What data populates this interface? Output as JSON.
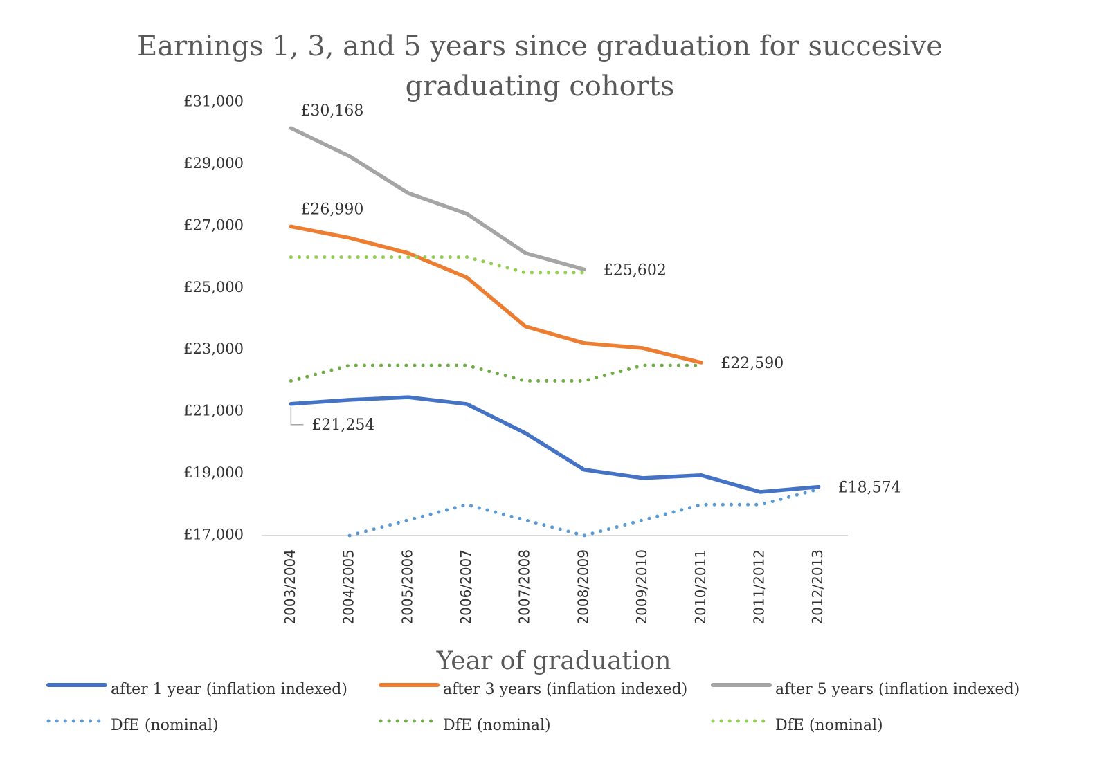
{
  "chart_data": {
    "type": "line",
    "title": "Earnings 1, 3, and 5 years since graduation for succesive graduating cohorts",
    "x_label": "Year of graduation",
    "categories": [
      "2003/2004",
      "2004/2005",
      "2005/2006",
      "2006/2007",
      "2007/2008",
      "2008/2009",
      "2009/2010",
      "2010/2011",
      "2011/2012",
      "2012/2013"
    ],
    "ylim": [
      17000,
      31000
    ],
    "yticks": [
      {
        "value": 17000,
        "label": "£17,000"
      },
      {
        "value": 19000,
        "label": "£19,000"
      },
      {
        "value": 21000,
        "label": "£21,000"
      },
      {
        "value": 23000,
        "label": "£23,000"
      },
      {
        "value": 25000,
        "label": "£25,000"
      },
      {
        "value": 27000,
        "label": "£27,000"
      },
      {
        "value": 29000,
        "label": "£29,000"
      },
      {
        "value": 31000,
        "label": "£31,000"
      }
    ],
    "grid": false,
    "legend": "bottom",
    "series": [
      {
        "name": "after 1 year  (inflation indexed)",
        "color": "#4472c4",
        "line_style": "solid",
        "values": [
          21254,
          21385,
          21470,
          21250,
          20310,
          19130,
          18860,
          18950,
          18410,
          18574
        ],
        "value_labels": [
          "£21,254",
          null,
          null,
          null,
          null,
          null,
          null,
          null,
          null,
          "£18,574"
        ]
      },
      {
        "name": "after 3 years  (inflation indexed)",
        "color": "#ed7d31",
        "line_style": "solid",
        "values": [
          26990,
          26620,
          26130,
          25340,
          23760,
          23220,
          23060,
          22590,
          null,
          null
        ],
        "value_labels": [
          "£26,990",
          null,
          null,
          null,
          null,
          null,
          null,
          "£22,590",
          null,
          null
        ]
      },
      {
        "name": "after 5 years  (inflation indexed)",
        "color": "#a5a5a5",
        "line_style": "solid",
        "values": [
          30168,
          29260,
          28070,
          27400,
          26130,
          25602,
          null,
          null,
          null,
          null
        ],
        "value_labels": [
          "£30,168",
          null,
          null,
          null,
          null,
          "£25,602",
          null,
          null,
          null,
          null
        ]
      },
      {
        "name": "DfE (nominal)",
        "color": "#5b9bd5",
        "line_style": "dotted",
        "values": [
          null,
          17000,
          17500,
          18000,
          17500,
          17000,
          17500,
          18000,
          18000,
          18500
        ]
      },
      {
        "name": "DfE (nominal)",
        "color": "#70ad47",
        "line_style": "dotted",
        "values": [
          22000,
          22500,
          22500,
          22500,
          22000,
          22000,
          22500,
          22500,
          null,
          null
        ]
      },
      {
        "name": "DfE (nominal)",
        "color": "#92d050",
        "line_style": "dotted",
        "values": [
          26000,
          26000,
          26000,
          26000,
          25500,
          25500,
          null,
          null,
          null,
          null
        ]
      }
    ]
  }
}
